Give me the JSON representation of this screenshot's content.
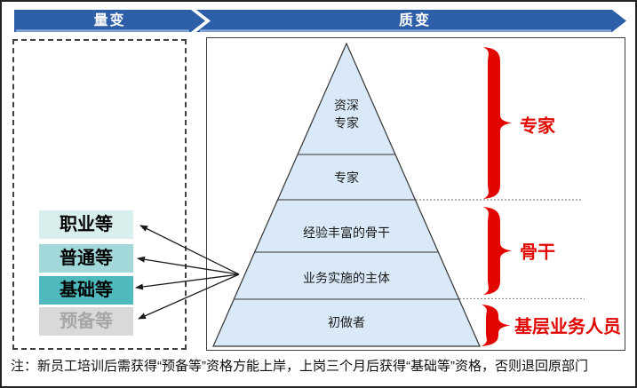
{
  "banners": {
    "left": "量变",
    "right": "质变"
  },
  "grades": [
    {
      "label": "职业等",
      "color": "#d9efed",
      "text_color": "#000000"
    },
    {
      "label": "普通等",
      "color": "#a2d8d9",
      "text_color": "#000000"
    },
    {
      "label": "基础等",
      "color": "#4fbabd",
      "text_color": "#000000"
    },
    {
      "label": "预备等",
      "color": "#d9d9d9",
      "text_color": "#a6a6a6"
    }
  ],
  "pyramid_levels": [
    "资深专家",
    "专家",
    "经验丰富的骨干",
    "业务实施的主体",
    "初做者"
  ],
  "tiers": [
    {
      "label": "专家"
    },
    {
      "label": "骨干"
    },
    {
      "label": "基层业务人员"
    }
  ],
  "note": "注：新员工培训后需获得“预备等”资格方能上岸，上岗三个月后获得“基础等”资格，否则退回原部门",
  "colors": {
    "banner_blue": "#2d5fa8",
    "pyramid_fill": "#d9e9f7",
    "accent_red": "#e10600",
    "dotted_gray": "#8c8c8c"
  }
}
